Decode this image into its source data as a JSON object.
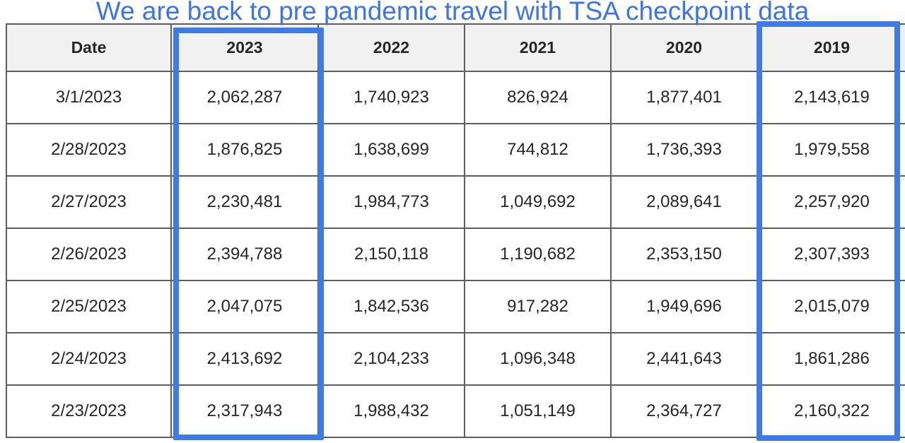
{
  "title": "We are back to pre pandemic travel with TSA checkpoint data",
  "colors": {
    "highlight": "#3f7be6",
    "title": "#3f74e4",
    "header_bg": "#f1f1f1",
    "grid": "#5e5e5e"
  },
  "chart_data": {
    "type": "table",
    "title": "We are back to pre pandemic travel with TSA checkpoint data",
    "columns": [
      "Date",
      "2023",
      "2022",
      "2021",
      "2020",
      "2019"
    ],
    "highlighted_columns": [
      "2023",
      "2019"
    ],
    "rows": [
      [
        "3/1/2023",
        "2,062,287",
        "1,740,923",
        "826,924",
        "1,877,401",
        "2,143,619"
      ],
      [
        "2/28/2023",
        "1,876,825",
        "1,638,699",
        "744,812",
        "1,736,393",
        "1,979,558"
      ],
      [
        "2/27/2023",
        "2,230,481",
        "1,984,773",
        "1,049,692",
        "2,089,641",
        "2,257,920"
      ],
      [
        "2/26/2023",
        "2,394,788",
        "2,150,118",
        "1,190,682",
        "2,353,150",
        "2,307,393"
      ],
      [
        "2/25/2023",
        "2,047,075",
        "1,842,536",
        "917,282",
        "1,949,696",
        "2,015,079"
      ],
      [
        "2/24/2023",
        "2,413,692",
        "2,104,233",
        "1,096,348",
        "2,441,643",
        "1,861,286"
      ],
      [
        "2/23/2023",
        "2,317,943",
        "1,988,432",
        "1,051,149",
        "2,364,727",
        "2,160,322"
      ]
    ]
  }
}
